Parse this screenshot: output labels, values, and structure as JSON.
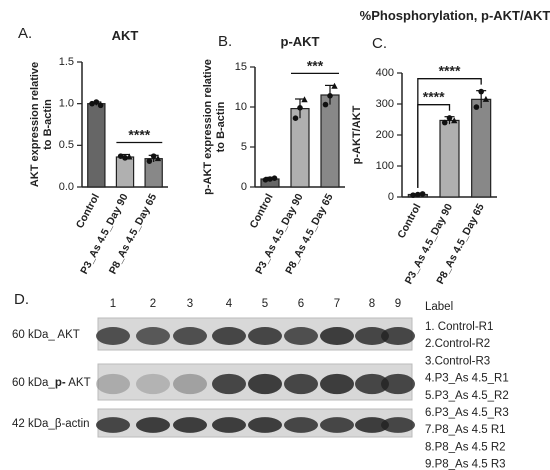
{
  "chart_data": [
    {
      "type": "bar",
      "panel": "A.",
      "title": "AKT",
      "y_label": "AKT expression relative to B-actin",
      "categories": [
        "Control",
        "P3_As 4.5_Day 90",
        "P8_As 4.5_Day 65"
      ],
      "values": [
        1.0,
        0.36,
        0.34
      ],
      "errors": [
        0.02,
        0.03,
        0.04
      ],
      "points": [
        [
          1.0,
          1.02,
          0.98
        ],
        [
          0.37,
          0.35,
          0.36
        ],
        [
          0.31,
          0.37,
          0.34
        ]
      ],
      "colors": [
        "#666666",
        "#b0b0b0",
        "#888888"
      ],
      "ylim": [
        0,
        1.5
      ],
      "yticks": [
        {
          "value": 0,
          "label": "0.0"
        },
        {
          "value": 0.5,
          "label": "0.5"
        },
        {
          "value": 1,
          "label": "1.0"
        },
        {
          "value": 1.5,
          "label": "1.5"
        }
      ],
      "significance": [
        {
          "between": [
            "P3_As 4.5_Day 90",
            "P8_As 4.5_Day 65"
          ],
          "label": "****"
        }
      ]
    },
    {
      "type": "bar",
      "panel": "B.",
      "title": "p-AKT",
      "y_label": "p-AKT expression relative to B-actin",
      "categories": [
        "Control",
        "P3_As 4.5_Day 90",
        "P8_As 4.5_Day 65"
      ],
      "values": [
        1.0,
        9.8,
        11.5
      ],
      "errors": [
        0.2,
        1.2,
        1.2
      ],
      "points": [
        [
          0.9,
          1.0,
          1.1
        ],
        [
          8.6,
          9.9,
          10.9
        ],
        [
          10.3,
          11.4,
          12.6
        ]
      ],
      "colors": [
        "#666666",
        "#b0b0b0",
        "#888888"
      ],
      "ylim": [
        0,
        15
      ],
      "yticks": [
        0,
        5,
        10,
        15
      ],
      "significance": [
        {
          "between": [
            "P3_As 4.5_Day 90",
            "P8_As 4.5_Day 65"
          ],
          "label": "***"
        }
      ]
    },
    {
      "type": "bar",
      "panel": "C.",
      "title": "%Phosphorylation, p-AKT/AKT",
      "y_label": "p-AKT/AKT",
      "categories": [
        "Control",
        "P3_As 4.5_Day 90",
        "P8_As 4.5_Day 65"
      ],
      "values": [
        8,
        247,
        315
      ],
      "errors": [
        2,
        12,
        28
      ],
      "points": [
        [
          6,
          8,
          10
        ],
        [
          240,
          255,
          246
        ],
        [
          290,
          340,
          315
        ]
      ],
      "colors": [
        "#666666",
        "#b0b0b0",
        "#888888"
      ],
      "ylim": [
        0,
        400
      ],
      "yticks": [
        0,
        100,
        200,
        300,
        400
      ],
      "significance": [
        {
          "between": [
            "Control",
            "P3_As 4.5_Day 90"
          ],
          "label": "****"
        },
        {
          "between": [
            "Control",
            "P8_As 4.5_Day 65"
          ],
          "label": "****"
        }
      ]
    }
  ],
  "blot": {
    "panel": "D.",
    "lanes": [
      "1",
      "2",
      "3",
      "4",
      "5",
      "6",
      "7",
      "8",
      "9"
    ],
    "rows": [
      [
        "60 kDa_ AKT"
      ],
      [
        "60 kDa_",
        "p-",
        " AKT"
      ],
      [
        "42 kDa_β-actin"
      ]
    ],
    "legend_title": "Label",
    "legend": [
      "1. Control-R1",
      "2.Control-R2",
      "3.Control-R3",
      "4.P3_As 4.5_R1",
      "5.P3_As 4.5_R2",
      "6.P3_As 4.5_R3",
      "7.P8_As 4.5 R1",
      "8.P8_As 4.5 R2",
      "9.P8_As 4.5 R3"
    ]
  }
}
